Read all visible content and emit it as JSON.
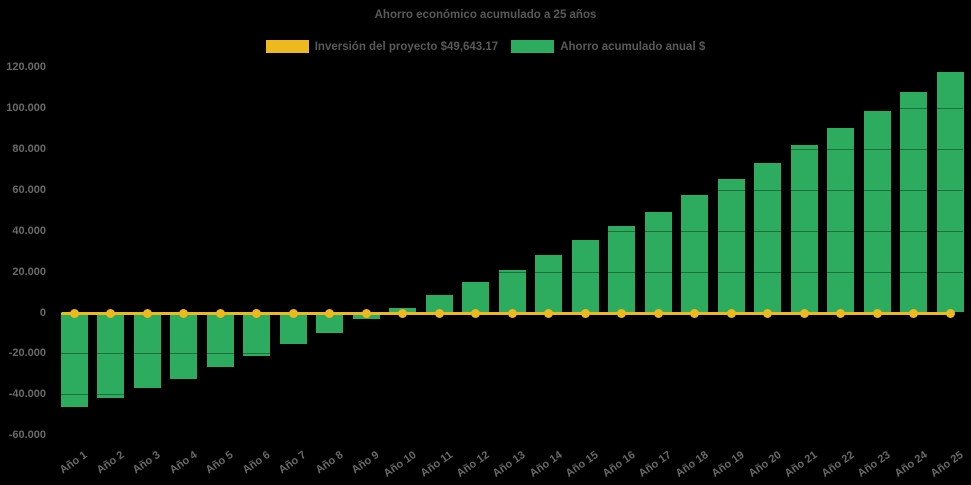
{
  "title": "Ahorro económico acumulado a 25 años",
  "legend": {
    "items": [
      {
        "label": "Inversión del proyecto $49,643.17",
        "color": "#edb91e"
      },
      {
        "label": "Ahorro acumulado anual $",
        "color": "#2dab5e"
      }
    ]
  },
  "colors": {
    "background": "#000000",
    "bar": "#2dab5e",
    "investment_line": "#edb91e",
    "title_text": "#595959",
    "axis_text": "#696969"
  },
  "chart_data": {
    "type": "bar",
    "title": "Ahorro económico acumulado a 25 años",
    "categories": [
      "Año 1",
      "Año 2",
      "Año 3",
      "Año 4",
      "Año 5",
      "Año 6",
      "Año 7",
      "Año 8",
      "Año 9",
      "Año 10",
      "Año 11",
      "Año 12",
      "Año 13",
      "Año 14",
      "Año 15",
      "Año 16",
      "Año 17",
      "Año 18",
      "Año 19",
      "Año 20",
      "Año 21",
      "Año 22",
      "Año 23",
      "Año 24",
      "Año 25"
    ],
    "series": [
      {
        "name": "Inversión del proyecto $49,643.17",
        "type": "line",
        "color": "#edb91e",
        "values": [
          0,
          0,
          0,
          0,
          0,
          0,
          0,
          0,
          0,
          0,
          0,
          0,
          0,
          0,
          0,
          0,
          0,
          0,
          0,
          0,
          0,
          0,
          0,
          0,
          0
        ]
      },
      {
        "name": "Ahorro acumulado anual $",
        "type": "bar",
        "color": "#2dab5e",
        "values": [
          -46400,
          -42000,
          -36800,
          -32300,
          -26800,
          -21100,
          -15200,
          -9800,
          -3400,
          2000,
          8600,
          14700,
          21000,
          27900,
          35200,
          42200,
          49100,
          57200,
          65300,
          73200,
          82000,
          90100,
          98700,
          107900,
          117400
        ]
      }
    ],
    "xlabel": "",
    "ylabel": "",
    "ylim": [
      -60000,
      120000
    ],
    "y_tick_step": 20000,
    "y_tick_labels": [
      "120.000",
      "100.000",
      "80.000",
      "60.000",
      "40.000",
      "20.000",
      "0",
      "-20.000",
      "-40.000",
      "-60.000"
    ],
    "grid": false,
    "legend_position": "top"
  }
}
